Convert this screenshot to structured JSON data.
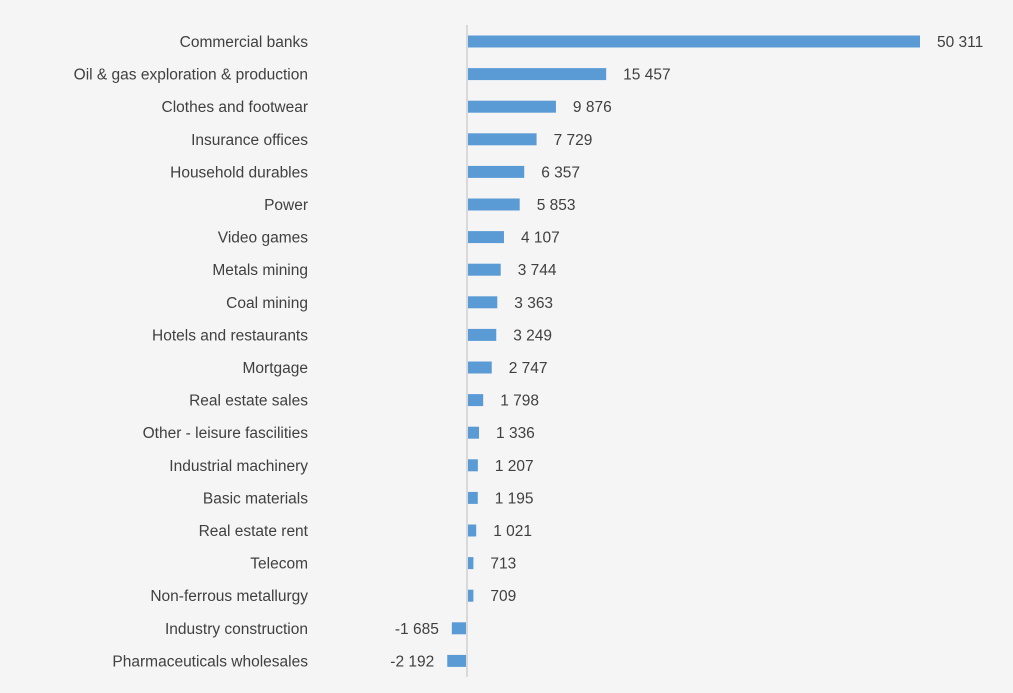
{
  "chart_data": {
    "type": "bar",
    "orientation": "horizontal",
    "categories": [
      "Commercial banks",
      "Oil & gas exploration & production",
      "Clothes and footwear",
      "Insurance offices",
      "Household durables",
      "Power",
      "Video games",
      "Metals mining",
      "Coal mining",
      "Hotels and restaurants",
      "Mortgage",
      "Real estate sales",
      "Other - leisure fascilities",
      "Industrial machinery",
      "Basic materials",
      "Real estate rent",
      "Telecom",
      "Non-ferrous metallurgy",
      "Industry construction",
      "Pharmaceuticals wholesales"
    ],
    "values": [
      50311,
      15457,
      9876,
      7729,
      6357,
      5853,
      4107,
      3744,
      3363,
      3249,
      2747,
      1798,
      1336,
      1207,
      1195,
      1021,
      713,
      709,
      -1685,
      -2192
    ],
    "labels": [
      "50 311",
      "15 457",
      "9 876",
      "7 729",
      "6 357",
      "5 853",
      "4 107",
      "3 744",
      "3 363",
      "3 249",
      "2 747",
      "1 798",
      "1 336",
      "1 207",
      "1 195",
      "1 021",
      "713",
      "709",
      "-1 685",
      "-2 192"
    ],
    "title": "",
    "xlabel": "",
    "ylabel": "",
    "grid": false,
    "legend": "none",
    "colors": {
      "bar": "#5b9bd5",
      "axis": "#d9d9d9",
      "text": "#404040",
      "background": "#f5f5f5"
    }
  }
}
